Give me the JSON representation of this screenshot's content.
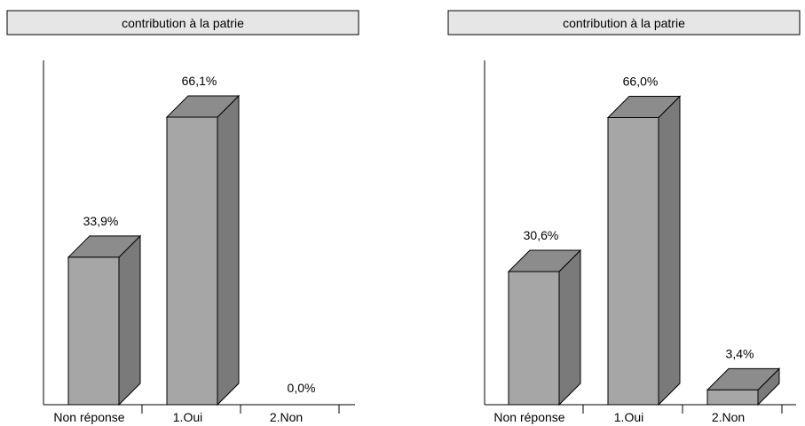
{
  "chart_data": [
    {
      "type": "bar",
      "title": "contribution à la patrie",
      "categories": [
        "Non réponse",
        "1.Oui",
        "2.Non"
      ],
      "values": [
        33.9,
        66.1,
        0.0
      ],
      "value_labels": [
        "33,9%",
        "66,1%",
        "0,0%"
      ],
      "ylim": [
        0,
        70
      ],
      "grid": false
    },
    {
      "type": "bar",
      "title": "contribution à la patrie",
      "categories": [
        "Non réponse",
        "1.Oui",
        "2.Non"
      ],
      "values": [
        30.6,
        66.0,
        3.4
      ],
      "value_labels": [
        "30,6%",
        "66,0%",
        "3,4%"
      ],
      "ylim": [
        0,
        70
      ],
      "grid": false
    }
  ],
  "colors": {
    "bar_front": "#a6a6a6",
    "bar_top": "#8c8c8c",
    "bar_side": "#7a7a7a",
    "title_box": "#e6e6e6"
  }
}
